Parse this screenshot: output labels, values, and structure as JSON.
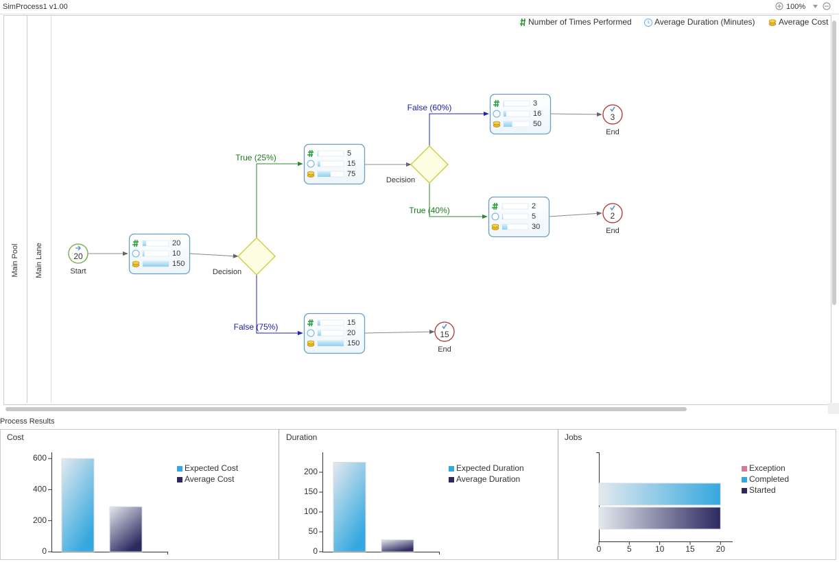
{
  "header": {
    "title": "SimProcess1 v1.00",
    "zoom": "100%"
  },
  "diagram": {
    "legend": [
      "Number of Times Performed",
      "Average Duration (Minutes)",
      "Average Cost"
    ],
    "pool": "Main Pool",
    "lane": "Main Lane",
    "events": [
      {
        "label": "Start",
        "count": 20
      },
      {
        "label": "End",
        "count": 15
      },
      {
        "label": "End",
        "count": 3
      },
      {
        "label": "End",
        "count": 2
      }
    ],
    "tasks": [
      {
        "count": 20,
        "duration": 10,
        "cost": 150
      },
      {
        "count": 5,
        "duration": 15,
        "cost": 75
      },
      {
        "count": 15,
        "duration": 20,
        "cost": 150
      },
      {
        "count": 3,
        "duration": 16,
        "cost": 50
      },
      {
        "count": 2,
        "duration": 5,
        "cost": 30
      }
    ],
    "gateways": [
      {
        "label": "Decision"
      },
      {
        "label": "Decision"
      }
    ],
    "flows": [
      "True (25%)",
      "False (75%)",
      "False (60%)",
      "True (40%)"
    ]
  },
  "results": {
    "title": "Process Results"
  },
  "chart_data": [
    {
      "type": "bar",
      "title": "Cost",
      "series": [
        {
          "name": "Expected Cost",
          "color": "#35a8df",
          "values": [
            600
          ]
        },
        {
          "name": "Average Cost",
          "color": "#2c2960",
          "values": [
            290
          ]
        }
      ],
      "ylim": [
        0,
        640
      ],
      "yticks": [
        0,
        200,
        400,
        600
      ]
    },
    {
      "type": "bar",
      "title": "Duration",
      "series": [
        {
          "name": "Expected Duration",
          "color": "#35a8df",
          "values": [
            225
          ]
        },
        {
          "name": "Average Duration",
          "color": "#2c2960",
          "values": [
            30
          ]
        }
      ],
      "ylim": [
        0,
        250
      ],
      "yticks": [
        0,
        50,
        100,
        150,
        200
      ]
    },
    {
      "type": "barh",
      "title": "Jobs",
      "series": [
        {
          "name": "Exception",
          "color": "#d77a96",
          "values": [
            0
          ]
        },
        {
          "name": "Completed",
          "color": "#35a8df",
          "values": [
            20
          ]
        },
        {
          "name": "Started",
          "color": "#2c2960",
          "values": [
            20
          ]
        }
      ],
      "xlim": [
        0,
        22
      ],
      "xticks": [
        0,
        5,
        10,
        15,
        20
      ]
    }
  ]
}
